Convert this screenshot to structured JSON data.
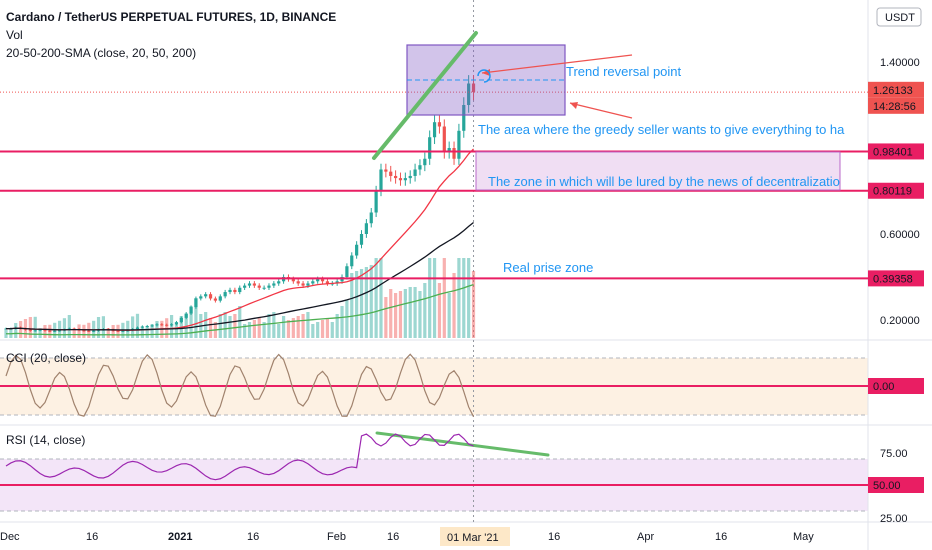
{
  "header": {
    "title": "Cardano / TetherUS PERPETUAL FUTURES, 1D, BINANCE",
    "vol_label": "Vol",
    "sma_label": "20-50-200-SMA (close, 20, 50, 200)",
    "currency_badge": "USDT"
  },
  "panes": {
    "cci_label": "CCI (20, close)",
    "rsi_label": "RSI (14, close)"
  },
  "price_axis": {
    "ticks": [
      "1.40000",
      "0.60000",
      "0.20000"
    ],
    "badges": {
      "current_price": "1.26133",
      "countdown": "14:28:56",
      "level_high": "0.98401",
      "level_mid": "0.80119",
      "level_low": "0.39358"
    }
  },
  "cci_axis": {
    "badge": "0.00"
  },
  "rsi_axis": {
    "ticks": [
      "75.00",
      "25.00"
    ],
    "badge": "50.00"
  },
  "time_axis": {
    "labels": [
      "Dec",
      "16",
      "2021",
      "16",
      "Feb",
      "16",
      "Apr",
      "16",
      "May"
    ],
    "current": "01 Mar '21",
    "after_current": "16"
  },
  "annotations": {
    "trend_reversal": "Trend reversal point",
    "greedy_seller": "The area where the greedy seller wants to give everything to ha",
    "lured_zone": "The zone in which will be lured by the news of decentralizatio",
    "real_price": "Real prise zone"
  },
  "colors": {
    "up": "#26a69a",
    "down": "#ef5350",
    "level_line": "#e91e63",
    "annotation": "#2196f3",
    "trend_line": "#66bb6a",
    "box_fill": "#7e57c2",
    "sma20": "#f23645",
    "sma50": "#131722",
    "sma200": "#4caf50",
    "cci_line": "#a0826d",
    "rsi_line": "#9c27b0"
  },
  "chart_data": {
    "type": "line",
    "symbol": "ADAUSDTPERP",
    "timeframe": "1D",
    "series": [
      {
        "name": "Cardano / TetherUS PERPETUAL FUTURES",
        "values": [
          0.16,
          0.16,
          0.165,
          0.16,
          0.155,
          0.15,
          0.152,
          0.155,
          0.15,
          0.148,
          0.15,
          0.152,
          0.155,
          0.16,
          0.158,
          0.152,
          0.15,
          0.148,
          0.15,
          0.155,
          0.158,
          0.155,
          0.15,
          0.148,
          0.15,
          0.152,
          0.158,
          0.165,
          0.17,
          0.172,
          0.175,
          0.18,
          0.178,
          0.175,
          0.18,
          0.19,
          0.21,
          0.23,
          0.26,
          0.3,
          0.31,
          0.32,
          0.3,
          0.29,
          0.31,
          0.33,
          0.34,
          0.33,
          0.35,
          0.36,
          0.37,
          0.36,
          0.35,
          0.35,
          0.36,
          0.37,
          0.38,
          0.4,
          0.39,
          0.38,
          0.37,
          0.36,
          0.37,
          0.38,
          0.39,
          0.38,
          0.37,
          0.37,
          0.38,
          0.4,
          0.45,
          0.5,
          0.55,
          0.6,
          0.65,
          0.7,
          0.8,
          0.9,
          0.89,
          0.87,
          0.86,
          0.85,
          0.86,
          0.87,
          0.9,
          0.92,
          0.95,
          1.05,
          1.12,
          1.1,
          0.98,
          1.0,
          0.95,
          1.08,
          1.2,
          1.3,
          1.26
        ]
      }
    ],
    "levels": [
      0.98401,
      0.80119,
      0.39358
    ],
    "cci_zero": 0.0,
    "rsi_midline": 50.0
  }
}
